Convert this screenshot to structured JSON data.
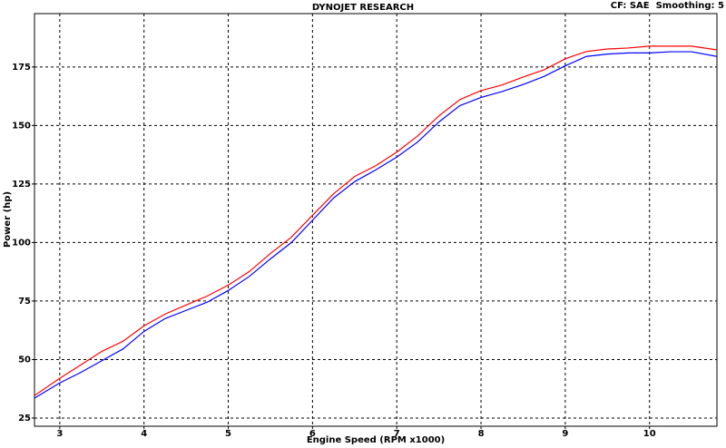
{
  "chart_data": {
    "type": "line",
    "title": "DYNOJET RESEARCH",
    "annotation": "CF: SAE  Smoothing: 5",
    "x_label": "Engine Speed (RPM x1000)",
    "y_label": "Power (hp)",
    "x": [
      2.7,
      3.0,
      3.25,
      3.5,
      3.75,
      4.0,
      4.25,
      4.5,
      4.75,
      5.0,
      5.25,
      5.5,
      5.75,
      6.0,
      6.25,
      6.5,
      6.75,
      7.0,
      7.25,
      7.5,
      7.75,
      8.0,
      8.25,
      8.5,
      8.75,
      9.0,
      9.25,
      9.5,
      9.75,
      10.0,
      10.25,
      10.5,
      10.8
    ],
    "series": [
      {
        "color": "#ff0000",
        "values": [
          34.6,
          42,
          47.7,
          53.5,
          57.8,
          64.4,
          69.4,
          73.3,
          77.1,
          81.8,
          87.6,
          95.3,
          102.3,
          111.6,
          120.8,
          128.2,
          132.8,
          138.6,
          145.6,
          154.1,
          161.1,
          164.9,
          167.3,
          170.7,
          173.8,
          178.5,
          181.6,
          182.7,
          183.1,
          183.9,
          183.9,
          183.9,
          182.3
        ]
      },
      {
        "color": "#0000ff",
        "values": [
          33.5,
          40,
          44.5,
          49.5,
          54.5,
          62,
          67.5,
          71,
          74.5,
          79.5,
          85.5,
          93,
          100,
          109.5,
          119,
          126,
          131,
          136.5,
          143,
          151.5,
          158.5,
          162,
          164.5,
          167.5,
          171,
          175.5,
          179.5,
          180.5,
          181,
          181,
          181.5,
          181.5,
          179.5
        ]
      }
    ],
    "xlim": [
      2.7,
      10.8
    ],
    "xticks": [
      3,
      4,
      5,
      6,
      7,
      8,
      9,
      10
    ],
    "ylim": [
      21.5,
      197.8
    ],
    "yticks": [
      25,
      50,
      75,
      100,
      125,
      150,
      175
    ],
    "grid": true
  }
}
